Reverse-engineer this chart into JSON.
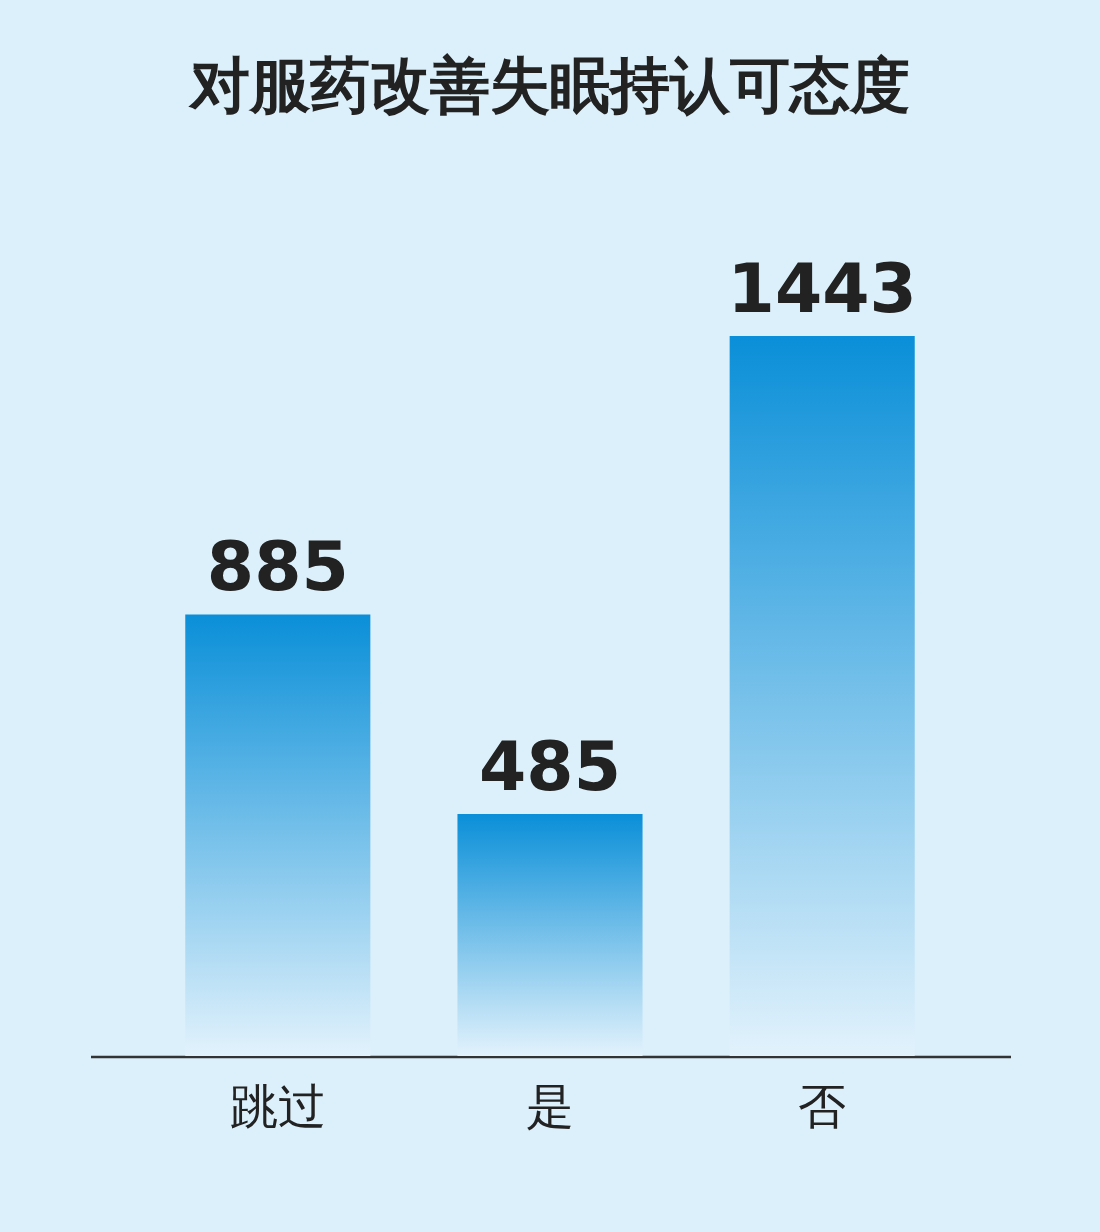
{
  "chart_data": {
    "type": "bar",
    "title": "对服药改善失眠持认可态度",
    "categories": [
      "跳过",
      "是",
      "否"
    ],
    "values": [
      885,
      485,
      1443
    ],
    "color": "#0a8fd8",
    "data_labels": true
  }
}
